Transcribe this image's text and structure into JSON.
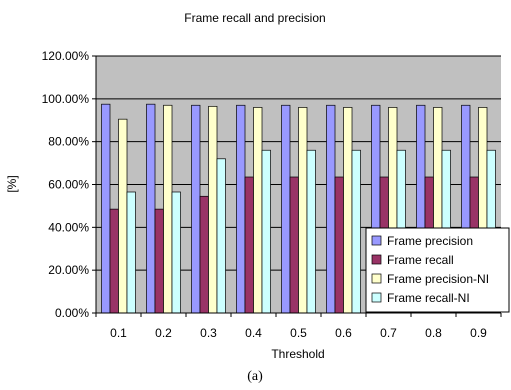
{
  "chart_data": {
    "type": "bar",
    "title": "Frame recall and precision",
    "xlabel": "Threshold",
    "ylabel": "[%]",
    "ylim": [
      0,
      120
    ],
    "yticks": [
      "0.00%",
      "20.00%",
      "40.00%",
      "60.00%",
      "80.00%",
      "100.00%",
      "120.00%"
    ],
    "categories": [
      "0.1",
      "0.2",
      "0.3",
      "0.4",
      "0.5",
      "0.6",
      "0.7",
      "0.8",
      "0.9"
    ],
    "series": [
      {
        "name": "Frame precision",
        "color": "#9999ff",
        "values": [
          97.5,
          97.5,
          97,
          97,
          97,
          97,
          97,
          97,
          97
        ]
      },
      {
        "name": "Frame recall",
        "color": "#993366",
        "values": [
          48.5,
          48.5,
          54.5,
          63.5,
          63.5,
          63.5,
          63.5,
          63.5,
          63.5
        ]
      },
      {
        "name": "Frame precision-NI",
        "color": "#ffffcc",
        "values": [
          90.5,
          97,
          96.5,
          96,
          96,
          96,
          96,
          96,
          96
        ]
      },
      {
        "name": "Frame recall-NI",
        "color": "#ccffff",
        "values": [
          56.5,
          56.5,
          72,
          76,
          76,
          76,
          76,
          76,
          76
        ]
      }
    ],
    "plot_background": "#c0c0c0",
    "grid": true,
    "legend_position": "bottom-right"
  },
  "caption": "(a)"
}
